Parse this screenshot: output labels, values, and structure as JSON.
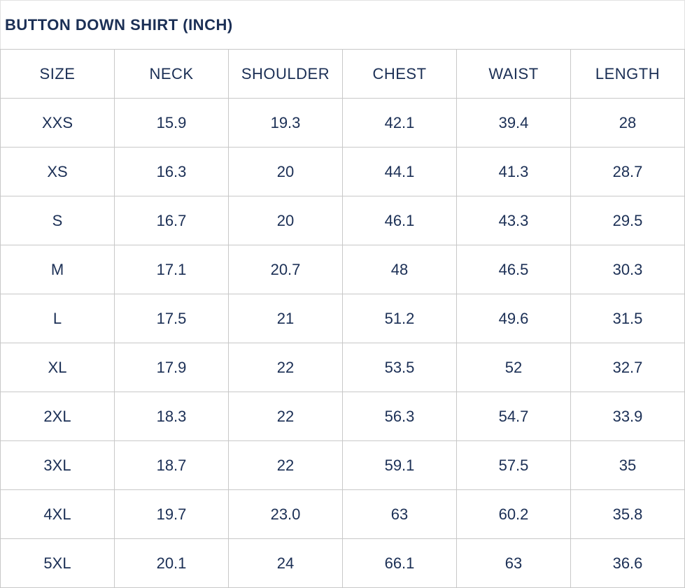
{
  "title": "BUTTON DOWN SHIRT (INCH)",
  "headers": [
    "SIZE",
    "NECK",
    "SHOULDER",
    "CHEST",
    "WAIST",
    "LENGTH"
  ],
  "rows": [
    [
      "XXS",
      "15.9",
      "19.3",
      "42.1",
      "39.4",
      "28"
    ],
    [
      "XS",
      "16.3",
      "20",
      "44.1",
      "41.3",
      "28.7"
    ],
    [
      "S",
      "16.7",
      "20",
      "46.1",
      "43.3",
      "29.5"
    ],
    [
      "M",
      "17.1",
      "20.7",
      "48",
      "46.5",
      "30.3"
    ],
    [
      "L",
      "17.5",
      "21",
      "51.2",
      "49.6",
      "31.5"
    ],
    [
      "XL",
      "17.9",
      "22",
      "53.5",
      "52",
      "32.7"
    ],
    [
      "2XL",
      "18.3",
      "22",
      "56.3",
      "54.7",
      "33.9"
    ],
    [
      "3XL",
      "18.7",
      "22",
      "59.1",
      "57.5",
      "35"
    ],
    [
      "4XL",
      "19.7",
      "23.0",
      "63",
      "60.2",
      "35.8"
    ],
    [
      "5XL",
      "20.1",
      "24",
      "66.1",
      "63",
      "36.6"
    ]
  ]
}
